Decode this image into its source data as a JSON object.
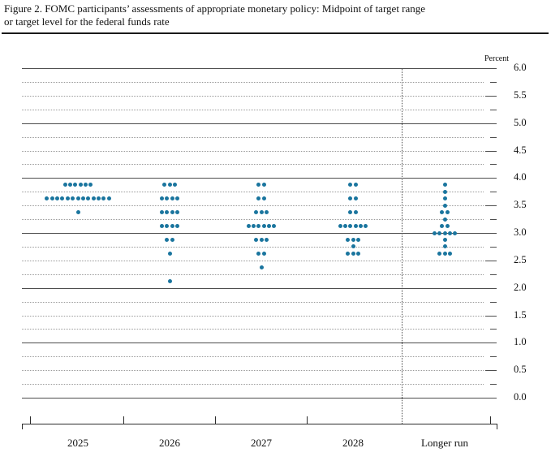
{
  "figure": {
    "title_line1": "Figure 2. FOMC participants’ assessments of appropriate monetary policy: Midpoint of target range",
    "title_line2": "or target level for the federal funds rate"
  },
  "chart_data": {
    "type": "scatter",
    "subtype": "fomc-dot-plot",
    "title": "Figure 2. FOMC participants’ assessments of appropriate monetary policy: Midpoint of target range or target level for the federal funds rate",
    "unit_label": "Percent",
    "categories": [
      "2025",
      "2026",
      "2027",
      "2028",
      "Longer run"
    ],
    "y_axis": {
      "min": 0.0,
      "max": 6.0,
      "label_step": 0.5,
      "solid_grid_step": 1.0,
      "dotted_grid_step": 0.25,
      "tick_labels": [
        "6.0",
        "5.5",
        "5.0",
        "4.5",
        "4.0",
        "3.5",
        "3.0",
        "2.5",
        "2.0",
        "1.5",
        "1.0",
        "0.5",
        "0.0"
      ]
    },
    "legend_position": "none",
    "grid": "on",
    "dot_color": "#1a759e",
    "series": [
      {
        "category": "2025",
        "distribution": [
          {
            "rate": 3.875,
            "count": 6
          },
          {
            "rate": 3.625,
            "count": 13
          },
          {
            "rate": 3.375,
            "count": 1
          }
        ]
      },
      {
        "category": "2026",
        "distribution": [
          {
            "rate": 3.875,
            "count": 3
          },
          {
            "rate": 3.625,
            "count": 4
          },
          {
            "rate": 3.375,
            "count": 4
          },
          {
            "rate": 3.125,
            "count": 4
          },
          {
            "rate": 2.875,
            "count": 2
          },
          {
            "rate": 2.625,
            "count": 1
          },
          {
            "rate": 2.125,
            "count": 1
          }
        ]
      },
      {
        "category": "2027",
        "distribution": [
          {
            "rate": 3.875,
            "count": 2
          },
          {
            "rate": 3.625,
            "count": 2
          },
          {
            "rate": 3.375,
            "count": 3
          },
          {
            "rate": 3.125,
            "count": 6
          },
          {
            "rate": 2.875,
            "count": 3
          },
          {
            "rate": 2.625,
            "count": 2
          },
          {
            "rate": 2.375,
            "count": 1
          }
        ]
      },
      {
        "category": "2028",
        "distribution": [
          {
            "rate": 3.875,
            "count": 2
          },
          {
            "rate": 3.625,
            "count": 2
          },
          {
            "rate": 3.375,
            "count": 2
          },
          {
            "rate": 3.125,
            "count": 6
          },
          {
            "rate": 2.875,
            "count": 3
          },
          {
            "rate": 2.75,
            "count": 1
          },
          {
            "rate": 2.625,
            "count": 3
          }
        ]
      },
      {
        "category": "Longer run",
        "distribution": [
          {
            "rate": 3.875,
            "count": 1
          },
          {
            "rate": 3.75,
            "count": 1
          },
          {
            "rate": 3.625,
            "count": 1
          },
          {
            "rate": 3.5,
            "count": 1
          },
          {
            "rate": 3.375,
            "count": 2
          },
          {
            "rate": 3.25,
            "count": 1
          },
          {
            "rate": 3.125,
            "count": 2
          },
          {
            "rate": 3.0,
            "count": 5
          },
          {
            "rate": 2.875,
            "count": 1
          },
          {
            "rate": 2.75,
            "count": 1
          },
          {
            "rate": 2.625,
            "count": 3
          }
        ]
      }
    ]
  }
}
